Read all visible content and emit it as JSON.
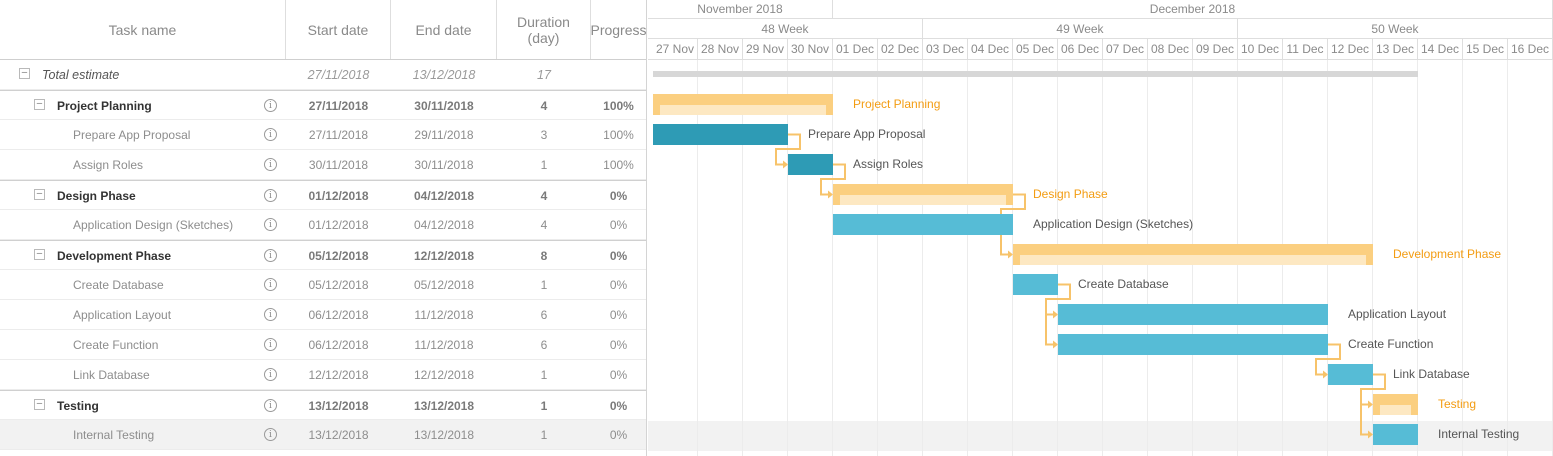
{
  "grid": {
    "headers": {
      "task_name": "Task name",
      "start_date": "Start date",
      "end_date": "End date",
      "duration": "Duration (day)",
      "progress": "Progress"
    },
    "collapse_glyph": "−",
    "info_glyph": "i",
    "rows": [
      {
        "name": "Total estimate",
        "start": "27/11/2018",
        "end": "13/12/2018",
        "duration": "17",
        "progress": "",
        "kind": "total"
      },
      {
        "name": "Project Planning",
        "start": "27/11/2018",
        "end": "30/11/2018",
        "duration": "4",
        "progress": "100%",
        "kind": "group"
      },
      {
        "name": "Prepare App Proposal",
        "start": "27/11/2018",
        "end": "29/11/2018",
        "duration": "3",
        "progress": "100%",
        "kind": "task"
      },
      {
        "name": "Assign Roles",
        "start": "30/11/2018",
        "end": "30/11/2018",
        "duration": "1",
        "progress": "100%",
        "kind": "task"
      },
      {
        "name": "Design Phase",
        "start": "01/12/2018",
        "end": "04/12/2018",
        "duration": "4",
        "progress": "0%",
        "kind": "group"
      },
      {
        "name": "Application Design (Sketches)",
        "start": "01/12/2018",
        "end": "04/12/2018",
        "duration": "4",
        "progress": "0%",
        "kind": "task"
      },
      {
        "name": "Development Phase",
        "start": "05/12/2018",
        "end": "12/12/2018",
        "duration": "8",
        "progress": "0%",
        "kind": "group"
      },
      {
        "name": "Create Database",
        "start": "05/12/2018",
        "end": "05/12/2018",
        "duration": "1",
        "progress": "0%",
        "kind": "task"
      },
      {
        "name": "Application Layout",
        "start": "06/12/2018",
        "end": "11/12/2018",
        "duration": "6",
        "progress": "0%",
        "kind": "task"
      },
      {
        "name": "Create Function",
        "start": "06/12/2018",
        "end": "11/12/2018",
        "duration": "6",
        "progress": "0%",
        "kind": "task"
      },
      {
        "name": "Link Database",
        "start": "12/12/2018",
        "end": "12/12/2018",
        "duration": "1",
        "progress": "0%",
        "kind": "task"
      },
      {
        "name": "Testing",
        "start": "13/12/2018",
        "end": "13/12/2018",
        "duration": "1",
        "progress": "0%",
        "kind": "group"
      },
      {
        "name": "Internal Testing",
        "start": "13/12/2018",
        "end": "13/12/2018",
        "duration": "1",
        "progress": "0%",
        "kind": "task",
        "selected": true
      }
    ]
  },
  "timeline": {
    "months": [
      "November 2018",
      "December 2018"
    ],
    "weeks": [
      "48 Week",
      "49 Week",
      "50 Week"
    ],
    "days": [
      "27 Nov",
      "28 Nov",
      "29 Nov",
      "30 Nov",
      "01 Dec",
      "02 Dec",
      "03 Dec",
      "04 Dec",
      "05 Dec",
      "06 Dec",
      "07 Dec",
      "08 Dec",
      "09 Dec",
      "10 Dec",
      "11 Dec",
      "12 Dec",
      "13 Dec",
      "14 Dec",
      "15 Dec",
      "16 Dec"
    ]
  },
  "gantt": {
    "colors": {
      "group": "#fbcf80",
      "group_light": "#fde8c2",
      "task_done": "#2e9bb5",
      "task": "#56bcd6",
      "link": "#f7c36a",
      "group_label": "#f39c12",
      "task_label": "#555555",
      "summary": "#d7d7d7"
    },
    "bars": [
      {
        "row": 0,
        "start_day": 0,
        "days": 17,
        "type": "summary",
        "label": ""
      },
      {
        "row": 1,
        "start_day": 0,
        "days": 4,
        "type": "group",
        "label": "Project Planning"
      },
      {
        "row": 2,
        "start_day": 0,
        "days": 3,
        "type": "task_done",
        "label": "Prepare App Proposal"
      },
      {
        "row": 3,
        "start_day": 3,
        "days": 1,
        "type": "task_done",
        "label": "Assign Roles"
      },
      {
        "row": 4,
        "start_day": 4,
        "days": 4,
        "type": "group",
        "label": "Design Phase"
      },
      {
        "row": 5,
        "start_day": 4,
        "days": 4,
        "type": "task",
        "label": "Application Design (Sketches)"
      },
      {
        "row": 6,
        "start_day": 8,
        "days": 8,
        "type": "group",
        "label": "Development Phase"
      },
      {
        "row": 7,
        "start_day": 8,
        "days": 1,
        "type": "task",
        "label": "Create Database"
      },
      {
        "row": 8,
        "start_day": 9,
        "days": 6,
        "type": "task",
        "label": "Application Layout"
      },
      {
        "row": 9,
        "start_day": 9,
        "days": 6,
        "type": "task",
        "label": "Create Function"
      },
      {
        "row": 10,
        "start_day": 15,
        "days": 1,
        "type": "task",
        "label": "Link Database"
      },
      {
        "row": 11,
        "start_day": 16,
        "days": 1,
        "type": "group",
        "label": "Testing"
      },
      {
        "row": 12,
        "start_day": 16,
        "days": 1,
        "type": "task",
        "label": "Internal Testing"
      }
    ],
    "links": [
      [
        2,
        3
      ],
      [
        3,
        4
      ],
      [
        4,
        6
      ],
      [
        7,
        8
      ],
      [
        7,
        9
      ],
      [
        9,
        10
      ],
      [
        10,
        11
      ],
      [
        10,
        12
      ]
    ]
  }
}
